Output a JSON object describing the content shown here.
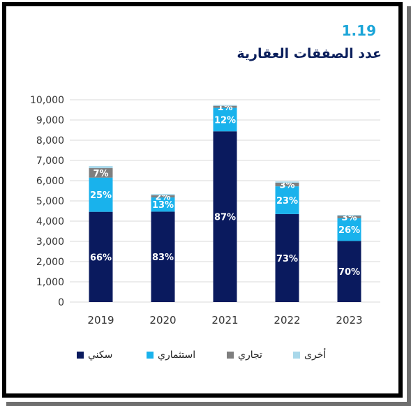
{
  "header": {
    "figure_number": "1.19",
    "title": "عدد الصفقات العقارية"
  },
  "chart_data": {
    "type": "bar",
    "stacked": true,
    "categories": [
      "2019",
      "2020",
      "2021",
      "2022",
      "2023"
    ],
    "ylim": [
      0,
      10000
    ],
    "yticks": [
      "0",
      "1,000",
      "2,000",
      "3,000",
      "4,000",
      "5,000",
      "6,000",
      "7,000",
      "8,000",
      "9,000",
      "10,000"
    ],
    "grid": true,
    "legend_position": "bottom",
    "series": [
      {
        "name": "سكني",
        "color": "#0a1a5e",
        "values": [
          4460,
          4470,
          8440,
          4350,
          3020
        ],
        "labels": [
          "66%",
          "83%",
          "87%",
          "73%",
          "70%"
        ]
      },
      {
        "name": "استثماري",
        "color": "#19b2ec",
        "values": [
          1690,
          700,
          1160,
          1370,
          1120
        ],
        "labels": [
          "25%",
          "13%",
          "12%",
          "23%",
          "26%"
        ]
      },
      {
        "name": "تجاري",
        "color": "#7f7f7f",
        "values": [
          470,
          110,
          100,
          180,
          130
        ],
        "labels": [
          "7%",
          "2%",
          "1%",
          "3%",
          "3%"
        ]
      },
      {
        "name": "أخرى",
        "color": "#a9d8ea",
        "values": [
          100,
          60,
          40,
          60,
          40
        ],
        "labels": [
          "",
          "",
          "",
          "",
          ""
        ]
      }
    ]
  }
}
